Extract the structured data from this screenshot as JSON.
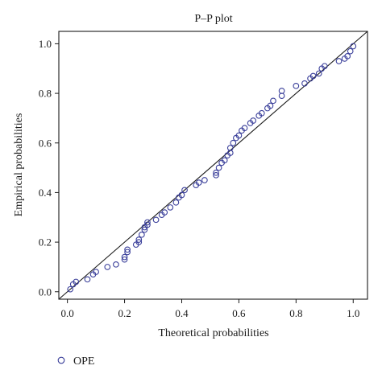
{
  "chart_data": {
    "type": "scatter",
    "title": "P–P plot",
    "xlabel": "Theoretical probabilities",
    "ylabel": "Empirical probabilities",
    "xlim": [
      -0.03,
      1.05
    ],
    "ylim": [
      -0.03,
      1.05
    ],
    "xticks": [
      0.0,
      0.2,
      0.4,
      0.6,
      0.8,
      1.0
    ],
    "xtick_labels": [
      "0.0",
      "0.2",
      "0.4",
      "0.6",
      "0.8",
      "1.0"
    ],
    "yticks": [
      0.0,
      0.2,
      0.4,
      0.6,
      0.8,
      1.0
    ],
    "ytick_labels": [
      "0.0",
      "0.2",
      "0.4",
      "0.6",
      "0.8",
      "1.0"
    ],
    "grid": false,
    "legend_position": "bottom-left",
    "reference_line": [
      [
        -0.03,
        -0.03
      ],
      [
        1.05,
        1.05
      ]
    ],
    "marker_color": "#3a3f9a",
    "series": [
      {
        "name": "OPE",
        "points": [
          [
            0.01,
            0.01
          ],
          [
            0.02,
            0.03
          ],
          [
            0.03,
            0.04
          ],
          [
            0.07,
            0.05
          ],
          [
            0.09,
            0.07
          ],
          [
            0.1,
            0.08
          ],
          [
            0.14,
            0.1
          ],
          [
            0.17,
            0.11
          ],
          [
            0.2,
            0.13
          ],
          [
            0.2,
            0.14
          ],
          [
            0.21,
            0.16
          ],
          [
            0.21,
            0.17
          ],
          [
            0.24,
            0.19
          ],
          [
            0.25,
            0.2
          ],
          [
            0.25,
            0.21
          ],
          [
            0.26,
            0.23
          ],
          [
            0.27,
            0.25
          ],
          [
            0.27,
            0.26
          ],
          [
            0.28,
            0.27
          ],
          [
            0.28,
            0.28
          ],
          [
            0.31,
            0.29
          ],
          [
            0.33,
            0.31
          ],
          [
            0.34,
            0.32
          ],
          [
            0.36,
            0.34
          ],
          [
            0.38,
            0.36
          ],
          [
            0.39,
            0.38
          ],
          [
            0.4,
            0.39
          ],
          [
            0.41,
            0.41
          ],
          [
            0.45,
            0.43
          ],
          [
            0.46,
            0.44
          ],
          [
            0.48,
            0.45
          ],
          [
            0.52,
            0.47
          ],
          [
            0.52,
            0.48
          ],
          [
            0.53,
            0.5
          ],
          [
            0.54,
            0.52
          ],
          [
            0.55,
            0.53
          ],
          [
            0.56,
            0.55
          ],
          [
            0.57,
            0.56
          ],
          [
            0.57,
            0.58
          ],
          [
            0.58,
            0.6
          ],
          [
            0.59,
            0.62
          ],
          [
            0.6,
            0.63
          ],
          [
            0.61,
            0.65
          ],
          [
            0.62,
            0.66
          ],
          [
            0.64,
            0.68
          ],
          [
            0.65,
            0.69
          ],
          [
            0.67,
            0.71
          ],
          [
            0.68,
            0.72
          ],
          [
            0.7,
            0.74
          ],
          [
            0.71,
            0.75
          ],
          [
            0.72,
            0.77
          ],
          [
            0.75,
            0.79
          ],
          [
            0.75,
            0.81
          ],
          [
            0.8,
            0.83
          ],
          [
            0.83,
            0.84
          ],
          [
            0.85,
            0.86
          ],
          [
            0.86,
            0.87
          ],
          [
            0.88,
            0.88
          ],
          [
            0.89,
            0.9
          ],
          [
            0.9,
            0.91
          ],
          [
            0.95,
            0.93
          ],
          [
            0.97,
            0.94
          ],
          [
            0.98,
            0.95
          ],
          [
            0.99,
            0.97
          ],
          [
            1.0,
            0.99
          ]
        ]
      }
    ]
  }
}
